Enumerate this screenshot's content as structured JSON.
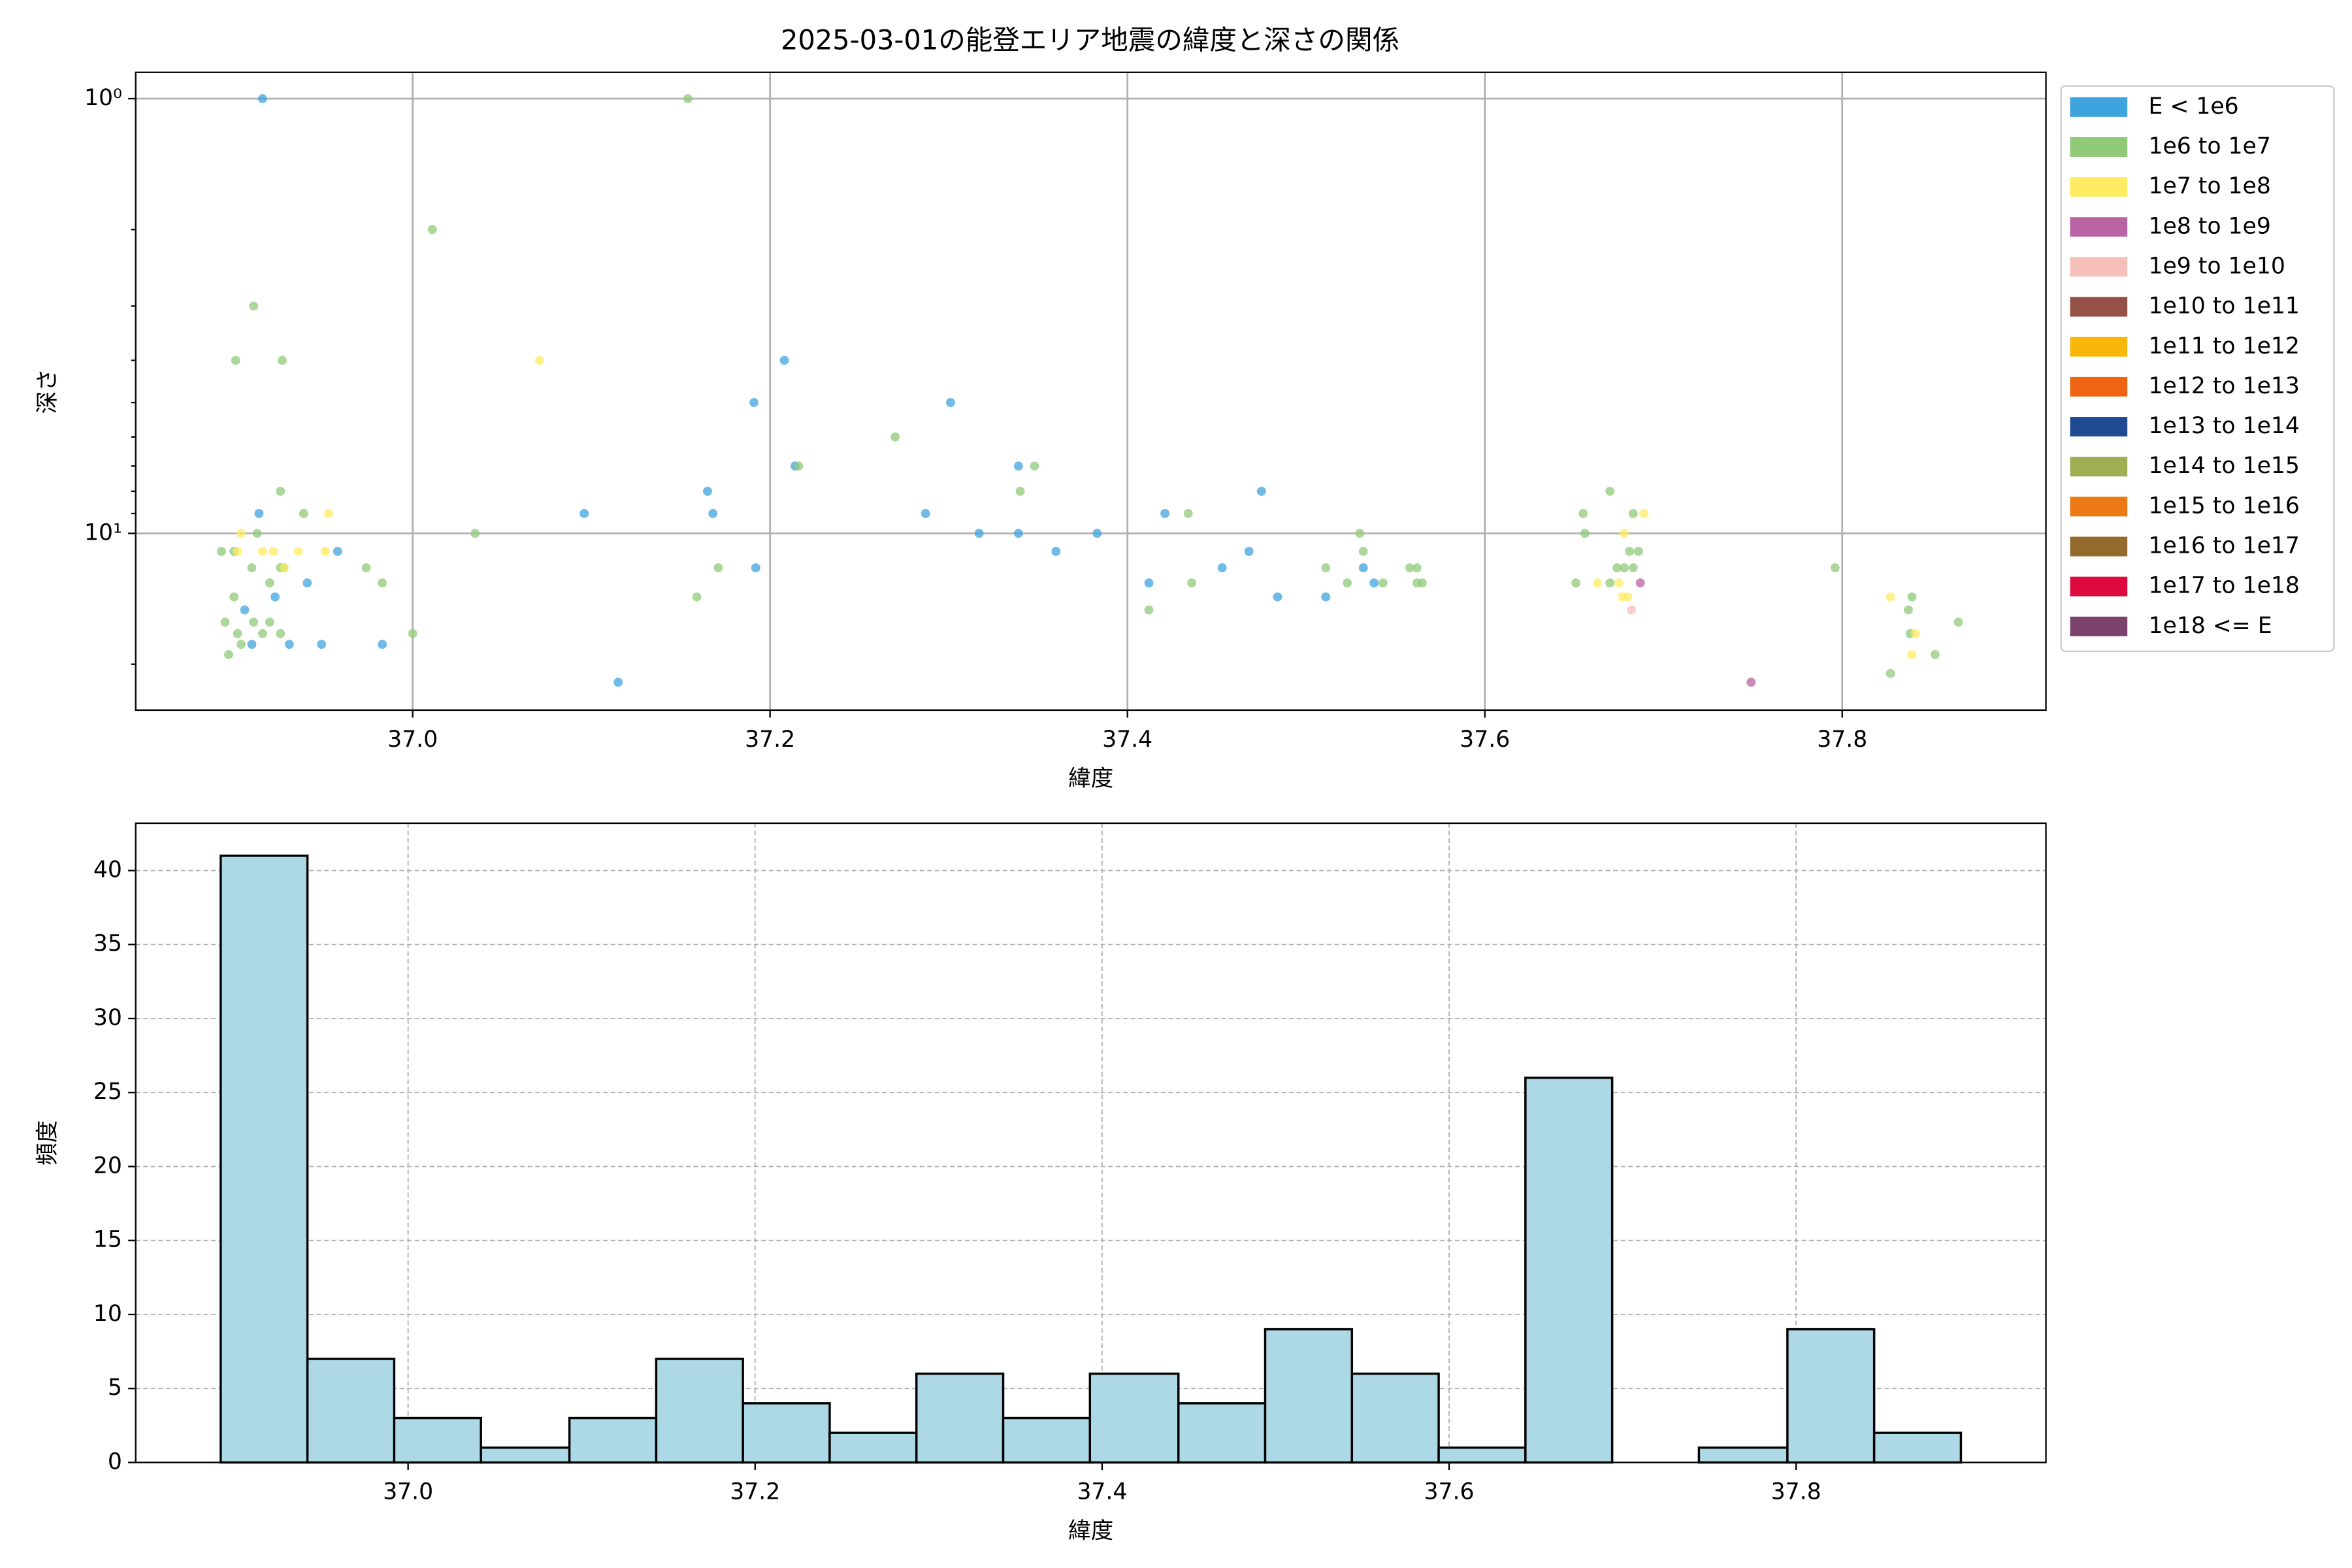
{
  "chart_data": [
    {
      "type": "scatter",
      "title": "2025-03-01の能登エリア地震の緯度と深さの関係",
      "xlabel": "緯度",
      "ylabel": "深さ",
      "xlim": [
        36.845,
        37.914
      ],
      "ylim": [
        25.5,
        0.87
      ],
      "y_log": true,
      "xticks": [
        {
          "value": 37.0,
          "label": "37.0"
        },
        {
          "value": 37.2,
          "label": "37.2"
        },
        {
          "value": 37.4,
          "label": "37.4"
        },
        {
          "value": 37.6,
          "label": "37.6"
        },
        {
          "value": 37.8,
          "label": "37.8"
        }
      ],
      "yticks": [
        {
          "value": 1,
          "label": "10⁰"
        },
        {
          "value": 10,
          "label": "10¹"
        }
      ],
      "yticks_minor": [
        2,
        3,
        4,
        5,
        6,
        7,
        8,
        9,
        20
      ],
      "grid": true,
      "grid_linestyle": "solid",
      "legend": "outside upper right",
      "series": [
        {
          "name": "E < 1e6",
          "color": "#3fa3dd",
          "x": [
            36.916,
            36.914,
            36.906,
            36.91,
            36.923,
            36.941,
            36.931,
            36.949,
            36.958,
            36.983,
            37.096,
            37.115,
            37.165,
            37.168,
            37.192,
            37.191,
            37.208,
            37.214,
            37.287,
            37.301,
            37.317,
            37.339,
            37.339,
            37.36,
            37.383,
            37.412,
            37.421,
            37.453,
            37.468,
            37.475,
            37.484,
            37.511,
            37.532,
            37.538
          ],
          "values": [
            1,
            9,
            15,
            18,
            14,
            13,
            18,
            18,
            11,
            18,
            9,
            22,
            8,
            9,
            12,
            5,
            4,
            7,
            9,
            5,
            10,
            7,
            10,
            11,
            10,
            13,
            9,
            12,
            11,
            8,
            14,
            14,
            12,
            13
          ]
        },
        {
          "name": "1e6 to 1e7",
          "color": "#90c978",
          "x": [
            37.154,
            37.011,
            36.911,
            36.901,
            36.927,
            37.035,
            37.0,
            36.926,
            36.913,
            36.893,
            36.9,
            36.939,
            36.91,
            36.926,
            36.928,
            36.92,
            36.9,
            36.895,
            36.911,
            36.92,
            36.902,
            36.916,
            36.926,
            36.904,
            36.897,
            36.974,
            36.983,
            37.159,
            37.171,
            37.216,
            37.27,
            37.348,
            37.34,
            37.434,
            37.436,
            37.412,
            37.511,
            37.523,
            37.53,
            37.532,
            37.543,
            37.558,
            37.562,
            37.562,
            37.565,
            37.655,
            37.656,
            37.67,
            37.651,
            37.674,
            37.678,
            37.683,
            37.683,
            37.681,
            37.686,
            37.67,
            37.796,
            37.839,
            37.837,
            37.838,
            37.852,
            37.865,
            37.827
          ],
          "values": [
            1,
            2,
            3,
            4,
            4,
            10,
            17,
            8,
            10,
            11,
            11,
            9,
            12,
            12,
            12,
            13,
            14,
            16,
            16,
            16,
            17,
            17,
            17,
            18,
            19,
            12,
            13,
            14,
            12,
            7,
            6,
            7,
            8,
            9,
            13,
            15,
            12,
            13,
            10,
            11,
            13,
            12,
            12,
            13,
            13,
            9,
            10,
            8,
            13,
            12,
            12,
            12,
            9,
            11,
            11,
            13,
            12,
            14,
            15,
            17,
            19,
            16,
            21
          ]
        },
        {
          "name": "1e7 to 1e8",
          "color": "#ffec62",
          "x": [
            37.071,
            36.904,
            36.902,
            36.916,
            36.922,
            36.936,
            36.951,
            36.953,
            36.928,
            37.678,
            37.689,
            37.663,
            37.675,
            37.677,
            37.68,
            37.827,
            37.841,
            37.839
          ],
          "values": [
            4,
            10,
            11,
            11,
            11,
            11,
            11,
            9,
            12,
            10,
            9,
            13,
            13,
            14,
            14,
            14,
            17,
            19
          ]
        },
        {
          "name": "1e8 to 1e9",
          "color": "#b963a3",
          "x": [
            37.749,
            37.687
          ],
          "values": [
            22,
            13
          ]
        },
        {
          "name": "1e9 to 1e10",
          "color": "#f5c0b9",
          "x": [
            37.682
          ],
          "values": [
            15
          ]
        },
        {
          "name": "1e10 to 1e11",
          "color": "#955048",
          "x": [],
          "values": []
        },
        {
          "name": "1e11 to 1e12",
          "color": "#f9b70b",
          "x": [],
          "values": []
        },
        {
          "name": "1e12 to 1e13",
          "color": "#ee6412",
          "x": [],
          "values": []
        },
        {
          "name": "1e13 to 1e14",
          "color": "#1e4b92",
          "x": [],
          "values": []
        },
        {
          "name": "1e14 to 1e15",
          "color": "#9fae52",
          "x": [],
          "values": []
        },
        {
          "name": "1e15 to 1e16",
          "color": "#ec7a14",
          "x": [],
          "values": []
        },
        {
          "name": "1e16 to 1e17",
          "color": "#946b2d",
          "x": [],
          "values": []
        },
        {
          "name": "1e17 to 1e18",
          "color": "#dc0a3e",
          "x": [],
          "values": []
        },
        {
          "name": "1e18 <= E",
          "color": "#7b436b",
          "x": [],
          "values": []
        }
      ]
    },
    {
      "type": "histogram",
      "xlabel": "緯度",
      "ylabel": "頻度",
      "xlim": [
        36.843,
        37.944
      ],
      "ylim": [
        0,
        43.2
      ],
      "xticks": [
        {
          "value": 37.0,
          "label": "37.0"
        },
        {
          "value": 37.2,
          "label": "37.2"
        },
        {
          "value": 37.4,
          "label": "37.4"
        },
        {
          "value": 37.6,
          "label": "37.6"
        },
        {
          "value": 37.8,
          "label": "37.8"
        }
      ],
      "yticks": [
        0,
        5,
        10,
        15,
        20,
        25,
        30,
        35,
        40
      ],
      "grid": true,
      "grid_linestyle": "dashed",
      "color": "#add8e6",
      "edgecolor": "#000000",
      "bins": [
        36.892,
        36.942,
        36.992,
        37.042,
        37.093,
        37.143,
        37.193,
        37.243,
        37.293,
        37.343,
        37.393,
        37.444,
        37.494,
        37.544,
        37.594,
        37.644,
        37.694,
        37.744,
        37.795,
        37.845,
        37.895
      ],
      "counts": [
        41,
        7,
        3,
        1,
        3,
        7,
        4,
        2,
        6,
        3,
        6,
        4,
        9,
        6,
        1,
        26,
        0,
        1,
        9,
        2
      ]
    }
  ]
}
